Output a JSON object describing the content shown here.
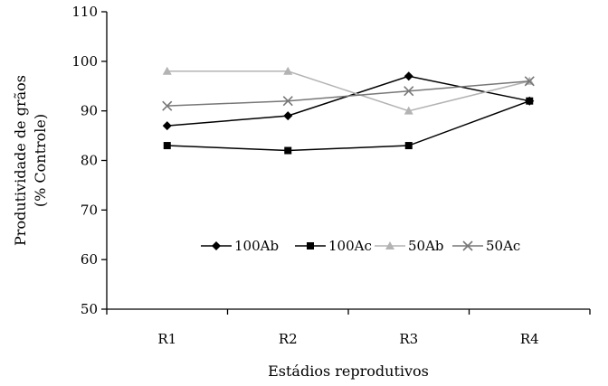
{
  "chart_data": {
    "type": "line",
    "xlabel": "Estádios reprodutivos",
    "ylabel_lines": [
      "Produtividade de grãos",
      "(% Controle)"
    ],
    "categories": [
      "R1",
      "R2",
      "R3",
      "R4"
    ],
    "ylim": [
      50,
      110
    ],
    "yticks": [
      50,
      60,
      70,
      80,
      90,
      100,
      110
    ],
    "grid": false,
    "legend_position": "lower-center",
    "series": [
      {
        "name": "100Ab",
        "values": [
          87,
          89,
          97,
          92
        ],
        "color": "#000000",
        "marker": "diamond"
      },
      {
        "name": "100Ac",
        "values": [
          83,
          82,
          83,
          92
        ],
        "color": "#000000",
        "marker": "square"
      },
      {
        "name": "50Ab",
        "values": [
          98,
          98,
          90,
          96
        ],
        "color": "#b3b3b3",
        "marker": "triangle"
      },
      {
        "name": "50Ac",
        "values": [
          91,
          92,
          94,
          96
        ],
        "color": "#777777",
        "marker": "x"
      }
    ]
  }
}
